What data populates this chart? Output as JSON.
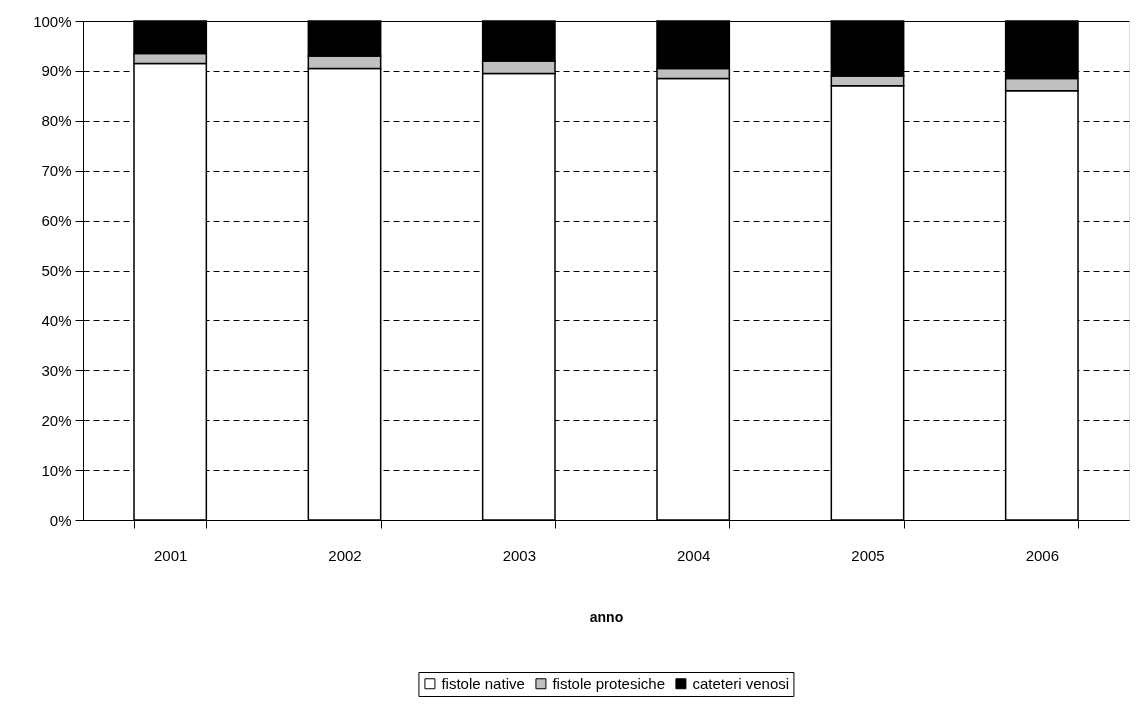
{
  "chart_data": {
    "type": "bar",
    "stacked": true,
    "xlabel": "anno",
    "categories": [
      "2001",
      "2002",
      "2003",
      "2004",
      "2005",
      "2006"
    ],
    "series": [
      {
        "name": "fistole native",
        "color": "#ffffff",
        "values": [
          91.5,
          90.5,
          89.5,
          88.5,
          87,
          86
        ]
      },
      {
        "name": "fistole protesiche",
        "color": "#c0c0c0",
        "values": [
          2,
          2.5,
          2.5,
          2,
          2,
          2.5
        ]
      },
      {
        "name": "cateteri venosi",
        "color": "#000000",
        "values": [
          6.5,
          7,
          8,
          9.5,
          11,
          11.5
        ]
      }
    ],
    "ylim": [
      0,
      100
    ],
    "yticks": [
      {
        "value": 0,
        "label": "0%"
      },
      {
        "value": 10,
        "label": "10%"
      },
      {
        "value": 20,
        "label": "20%"
      },
      {
        "value": 30,
        "label": "30%"
      },
      {
        "value": 40,
        "label": "40%"
      },
      {
        "value": 50,
        "label": "50%"
      },
      {
        "value": 60,
        "label": "60%"
      },
      {
        "value": 70,
        "label": "70%"
      },
      {
        "value": 80,
        "label": "80%"
      },
      {
        "value": 90,
        "label": "90%"
      },
      {
        "value": 100,
        "label": "100%"
      }
    ],
    "grid": "y",
    "legend": "bottom"
  }
}
